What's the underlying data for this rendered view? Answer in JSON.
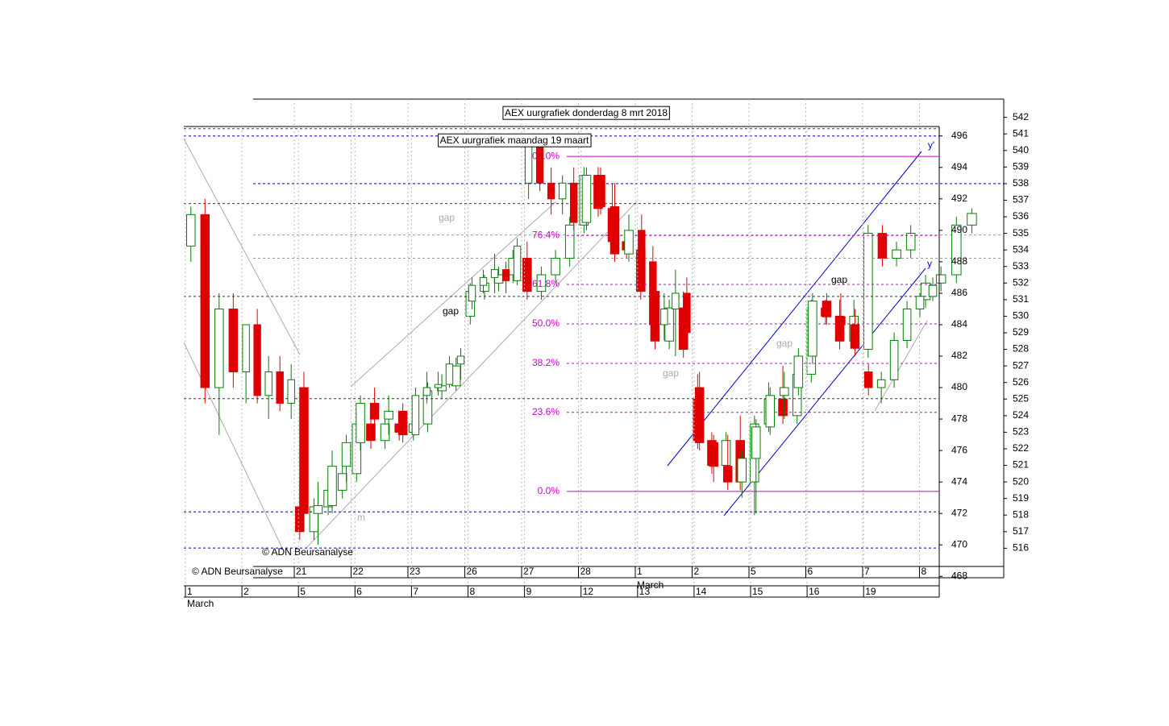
{
  "chart_data": [
    {
      "type": "candlestick",
      "title": "AEX uurgrafiek donderdag 8 mrt 2018",
      "copyright": "© ADN Beursanalyse",
      "ylim": [
        514.9,
        543.1
      ],
      "yticks": [
        516,
        517,
        518,
        519,
        520,
        521,
        522,
        523,
        524,
        525,
        526,
        527,
        528,
        529,
        530,
        531,
        532,
        533,
        534,
        535,
        536,
        537,
        538,
        539,
        540,
        541,
        542
      ],
      "up_color": "#008000",
      "down_color": "#e00000",
      "levels": [
        {
          "value": 538,
          "color": "#0000aa"
        },
        {
          "value": 534.9,
          "color": "#999999"
        },
        {
          "value": 533.5,
          "color": "#999999"
        }
      ],
      "days": [
        {
          "label": "21",
          "candles": [
            [
              518.5,
              520,
              516.5,
              517
            ],
            [
              517,
              519,
              516.5,
              518.5
            ],
            [
              518.5,
              520,
              518,
              519.5
            ],
            [
              519.5,
              521,
              519,
              520.5
            ]
          ]
        },
        {
          "label": "22",
          "candles": [
            [
              520.5,
              524,
              520,
              523.5
            ],
            [
              523.5,
              524,
              522,
              522.5
            ],
            [
              522.5,
              524,
              522,
              523.5
            ],
            [
              523.5,
              524,
              522.5,
              523
            ]
          ]
        },
        {
          "label": "23",
          "candles": [
            [
              523,
              524,
              522.5,
              523.5
            ],
            [
              523.5,
              526,
              523,
              525.5
            ],
            [
              525.5,
              526.5,
              525,
              525.8
            ],
            [
              525.8,
              527.5,
              525.5,
              527
            ]
          ]
        },
        {
          "label": "26",
          "candles": [
            [
              530,
              532,
              529.5,
              531.5
            ],
            [
              531.5,
              532.5,
              531,
              532
            ],
            [
              532,
              533,
              531.5,
              532.5
            ],
            [
              532.5,
              534,
              532,
              533.5
            ]
          ]
        },
        {
          "label": "27",
          "candles": [
            [
              533.5,
              534.5,
              531,
              531.5
            ],
            [
              531.5,
              533,
              531,
              532.5
            ],
            [
              532.5,
              534,
              532,
              533.5
            ],
            [
              533.5,
              536,
              533,
              535.5
            ]
          ]
        },
        {
          "label": "28",
          "candles": [
            [
              535.5,
              539,
              535,
              538.5
            ],
            [
              538.5,
              539,
              536,
              536.5
            ],
            [
              536.5,
              538,
              534,
              534.5
            ],
            [
              534.5,
              535,
              533.5,
              534
            ]
          ]
        },
        {
          "label": "1",
          "month": "March",
          "candles": [
            [
              534,
              535,
              531,
              531.5
            ],
            [
              531.5,
              533,
              528,
              528.5
            ],
            [
              528.5,
              531,
              528,
              530.5
            ],
            [
              530.5,
              531.5,
              527.5,
              528
            ]
          ]
        },
        {
          "label": "2",
          "candles": [
            [
              525,
              526.5,
              522,
              522.5
            ],
            [
              522.5,
              523,
              520.5,
              521
            ],
            [
              521,
              523,
              520,
              522.5
            ],
            [
              522.5,
              524,
              519.5,
              520
            ]
          ]
        },
        {
          "label": "5",
          "candles": [
            [
              520,
              524,
              518,
              523.5
            ],
            [
              523.5,
              526,
              523,
              525
            ],
            [
              525,
              527,
              523.5,
              524
            ],
            [
              524,
              527,
              523.5,
              526.5
            ]
          ]
        },
        {
          "label": "6",
          "candles": [
            [
              526.5,
              531,
              526,
              530.5
            ],
            [
              530.5,
              531,
              529.5,
              530
            ],
            [
              530,
              531,
              528,
              528.5
            ],
            [
              528.5,
              531,
              528,
              530
            ]
          ]
        },
        {
          "label": "7",
          "candles": [
            [
              528,
              535.5,
              527.5,
              535
            ],
            [
              535,
              535.5,
              533,
              533.5
            ],
            [
              533.5,
              534.5,
              533,
              534
            ],
            [
              534,
              535.5,
              533.5,
              535
            ]
          ]
        },
        {
          "label": "8",
          "candles": [
            [
              531,
              532.5,
              530.5,
              532
            ],
            [
              532,
              533,
              531.5,
              532.5
            ],
            [
              532.5,
              536,
              532,
              535.5
            ],
            [
              535.5,
              536.5,
              535,
              536.2
            ]
          ]
        }
      ]
    },
    {
      "type": "candlestick",
      "title": "AEX uurgrafiek maandag 19 maart",
      "copyright": "© ADN Beursanalyse",
      "ylim": [
        467.4,
        496.6
      ],
      "yticks": [
        468,
        470,
        472,
        474,
        476,
        478,
        480,
        482,
        484,
        486,
        488,
        490,
        492,
        494,
        496
      ],
      "up_color": "#008000",
      "down_color": "#e00000",
      "levels": [
        {
          "value": 496.46,
          "color": "#333366"
        },
        {
          "value": 496,
          "color": "#0000aa"
        },
        {
          "value": 491.7,
          "color": "#333333"
        },
        {
          "value": 485.8,
          "color": "#333333"
        },
        {
          "value": 479.3,
          "color": "#333333"
        },
        {
          "value": 472.1,
          "color": "#0000aa"
        },
        {
          "value": 469.8,
          "color": "#0000aa"
        }
      ],
      "fib_color": "#cc00cc",
      "fib_levels": [
        {
          "value": 494.7,
          "label": "100.0%"
        },
        {
          "value": 489.67,
          "label": "76.4%"
        },
        {
          "value": 486.56,
          "label": "61.8%"
        },
        {
          "value": 484.05,
          "label": "50.0%"
        },
        {
          "value": 481.54,
          "label": "38.2%"
        },
        {
          "value": 478.43,
          "label": "23.6%"
        },
        {
          "value": 473.4,
          "label": "0.0%"
        }
      ],
      "annotations": [
        "gap",
        "gap",
        "gap",
        "gap",
        "gap",
        "y'",
        "y",
        "m"
      ],
      "days": [
        {
          "label": "1",
          "month": "March",
          "candles": [
            [
              489,
              491.5,
              488,
              491
            ],
            [
              491,
              492,
              479,
              480
            ],
            [
              480,
              486,
              477,
              485
            ],
            [
              485,
              486,
              480,
              481
            ]
          ]
        },
        {
          "label": "2",
          "candles": [
            [
              481,
              484,
              479,
              484
            ],
            [
              484,
              485,
              479,
              479.5
            ],
            [
              479.5,
              482,
              478,
              481
            ],
            [
              481,
              482,
              478.5,
              479
            ],
            [
              479,
              481.5,
              478,
              480.5
            ]
          ]
        },
        {
          "label": "5",
          "candles": [
            [
              480,
              481,
              471,
              472
            ],
            [
              472,
              474,
              470,
              472.5
            ],
            [
              472.5,
              476,
              472,
              475
            ],
            [
              475,
              477,
              474,
              476.5
            ]
          ]
        },
        {
          "label": "6",
          "candles": [
            [
              476.5,
              479.5,
              476,
              479
            ],
            [
              479,
              480,
              477,
              478
            ],
            [
              478,
              479.5,
              477,
              478.5
            ],
            [
              478.5,
              479,
              476.5,
              477
            ]
          ]
        },
        {
          "label": "7",
          "candles": [
            [
              477,
              480,
              477,
              479.5
            ],
            [
              479.5,
              481,
              479,
              480
            ],
            [
              480,
              481,
              479.5,
              480.2
            ],
            [
              480.2,
              482,
              480,
              481.5
            ],
            [
              481.5,
              482.5,
              480.5,
              482
            ]
          ]
        },
        {
          "label": "8",
          "candles": [
            [
              485.5,
              487,
              485,
              486.5
            ],
            [
              486.5,
              487.5,
              486,
              487
            ],
            [
              487,
              488.5,
              486,
              487.5
            ],
            [
              487.5,
              488,
              486,
              486.8
            ],
            [
              486.8,
              489.5,
              486.5,
              489
            ]
          ]
        },
        {
          "label": "9",
          "candles": [
            [
              493,
              496,
              492,
              495.5
            ],
            [
              495.5,
              496,
              492.5,
              493
            ],
            [
              493,
              494,
              491,
              492
            ],
            [
              492,
              493.5,
              491,
              493
            ],
            [
              493,
              494,
              490,
              490.5
            ]
          ]
        },
        {
          "label": "12",
          "candles": [
            [
              490.5,
              494,
              490,
              493.5
            ],
            [
              493.5,
              494,
              491,
              491.5
            ],
            [
              491.5,
              493,
              488,
              488.5
            ],
            [
              488.5,
              491,
              488,
              490
            ]
          ]
        },
        {
          "label": "13",
          "candles": [
            [
              490,
              491,
              487,
              488
            ],
            [
              488,
              489,
              483,
              484
            ],
            [
              484,
              486,
              483,
              485
            ],
            [
              485,
              487.5,
              482,
              486
            ],
            [
              486,
              487,
              483,
              483.5
            ]
          ]
        },
        {
          "label": "14",
          "candles": [
            [
              480,
              481,
              476,
              476.5
            ],
            [
              476.5,
              477,
              474,
              475
            ],
            [
              475,
              477,
              473.5,
              474
            ],
            [
              474,
              476,
              473,
              475.5
            ]
          ]
        },
        {
          "label": "15",
          "candles": [
            [
              475.5,
              478,
              472,
              477.5
            ],
            [
              477.5,
              480,
              477,
              479.5
            ],
            [
              479.5,
              481,
              478,
              480
            ],
            [
              480,
              482.5,
              479.5,
              482
            ]
          ]
        },
        {
          "label": "16",
          "candles": [
            [
              482,
              486,
              481.5,
              485.5
            ],
            [
              485.5,
              486,
              484,
              484.5
            ],
            [
              484.5,
              486,
              483,
              484
            ],
            [
              484,
              485,
              482,
              482.5
            ]
          ]
        },
        {
          "label": "19",
          "candles": [
            [
              481,
              481.5,
              479.5,
              480
            ],
            [
              480,
              481,
              479,
              480.5
            ],
            [
              480.5,
              483.5,
              480,
              483
            ],
            [
              483,
              485.5,
              482.5,
              485
            ],
            [
              485,
              486,
              484.5,
              485.8
            ],
            [
              485.8,
              487,
              485.5,
              486.5
            ]
          ]
        }
      ]
    }
  ]
}
